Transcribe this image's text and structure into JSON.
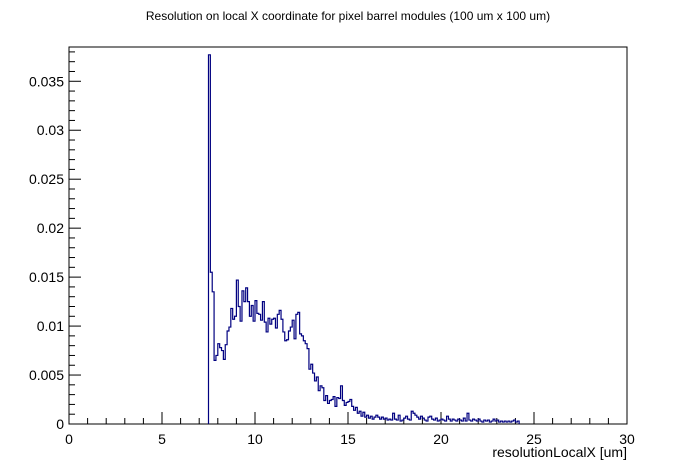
{
  "chart_data": {
    "type": "histogram",
    "title": "Resolution on local X coordinate for pixel barrel modules (100 um x 100 um)",
    "xlabel": "resolutionLocalX [um]",
    "ylabel": "",
    "xlim": [
      0,
      30
    ],
    "ylim": [
      0,
      0.0385
    ],
    "x_ticks": [
      0,
      5,
      10,
      15,
      20,
      25,
      30
    ],
    "x_tick_labels": [
      "0",
      "5",
      "10",
      "15",
      "20",
      "25",
      "30"
    ],
    "y_ticks": [
      0,
      0.005,
      0.01,
      0.015,
      0.02,
      0.025,
      0.03,
      0.035
    ],
    "y_tick_labels": [
      "0",
      "0.005",
      "0.01",
      "0.015",
      "0.02",
      "0.025",
      "0.03",
      "0.035"
    ],
    "grid": false,
    "line_color": "#000080",
    "bin_width": 0.1,
    "x": [
      7.5,
      7.6,
      7.7,
      7.8,
      7.9,
      8.0,
      8.1,
      8.2,
      8.3,
      8.4,
      8.5,
      8.6,
      8.7,
      8.8,
      8.9,
      9.0,
      9.1,
      9.2,
      9.3,
      9.4,
      9.5,
      9.6,
      9.7,
      9.8,
      9.9,
      10.0,
      10.1,
      10.2,
      10.3,
      10.4,
      10.5,
      10.6,
      10.7,
      10.8,
      10.9,
      11.0,
      11.1,
      11.2,
      11.3,
      11.4,
      11.5,
      11.6,
      11.7,
      11.8,
      11.9,
      12.0,
      12.1,
      12.2,
      12.3,
      12.4,
      12.5,
      12.6,
      12.7,
      12.8,
      12.9,
      13.0,
      13.1,
      13.2,
      13.3,
      13.4,
      13.5,
      13.6,
      13.7,
      13.8,
      13.9,
      14.0,
      14.1,
      14.2,
      14.3,
      14.4,
      14.5,
      14.6,
      14.7,
      14.8,
      14.9,
      15.0,
      15.1,
      15.2,
      15.3,
      15.4,
      15.5,
      15.6,
      15.7,
      15.8,
      15.9,
      16.0,
      16.1,
      16.2,
      16.3,
      16.4,
      16.5,
      16.6,
      16.7,
      16.8,
      16.9,
      17.0,
      17.1,
      17.2,
      17.3,
      17.4,
      17.5,
      17.6,
      17.7,
      17.8,
      17.9,
      18.0,
      18.1,
      18.2,
      18.3,
      18.4,
      18.5,
      18.6,
      18.7,
      18.8,
      18.9,
      19.0,
      19.1,
      19.2,
      19.3,
      19.4,
      19.5,
      19.6,
      19.7,
      19.8,
      19.9,
      20.0,
      20.1,
      20.2,
      20.3,
      20.4,
      20.5,
      20.6,
      20.7,
      20.8,
      20.9,
      21.0,
      21.1,
      21.2,
      21.3,
      21.4,
      21.5,
      21.6,
      21.7,
      21.8,
      21.9,
      22.0,
      22.1,
      22.2,
      22.3,
      22.4,
      22.5,
      22.6,
      22.7,
      22.8,
      22.9,
      23.0,
      23.1,
      23.2,
      23.3,
      23.4,
      23.5,
      23.6,
      23.7,
      23.8,
      23.9,
      24.0,
      24.1
    ],
    "values": [
      0.0377,
      0.0155,
      0.0135,
      0.0065,
      0.007,
      0.0082,
      0.0078,
      0.0075,
      0.0066,
      0.0081,
      0.0095,
      0.0099,
      0.0118,
      0.0107,
      0.011,
      0.0147,
      0.012,
      0.0105,
      0.0136,
      0.0125,
      0.0139,
      0.0125,
      0.011,
      0.0121,
      0.0105,
      0.0126,
      0.0113,
      0.0112,
      0.0106,
      0.0125,
      0.0104,
      0.0094,
      0.0108,
      0.0102,
      0.0107,
      0.0108,
      0.0098,
      0.0112,
      0.0116,
      0.0107,
      0.0094,
      0.0085,
      0.0086,
      0.0095,
      0.0099,
      0.0106,
      0.0087,
      0.0112,
      0.0114,
      0.0092,
      0.009,
      0.0085,
      0.0082,
      0.0077,
      0.0056,
      0.0061,
      0.0052,
      0.0044,
      0.0048,
      0.0034,
      0.0039,
      0.0037,
      0.0024,
      0.0029,
      0.0021,
      0.0024,
      0.0025,
      0.0028,
      0.0018,
      0.0027,
      0.0026,
      0.0039,
      0.0024,
      0.0019,
      0.0022,
      0.0023,
      0.0025,
      0.0018,
      0.0014,
      0.0017,
      0.0011,
      0.0013,
      0.0008,
      0.0012,
      0.0007,
      0.0009,
      0.0006,
      0.0008,
      0.0005,
      0.0007,
      0.0009,
      0.0007,
      0.0005,
      0.0007,
      0.0005,
      0.0006,
      0.0004,
      0.0005,
      0.0004,
      0.0011,
      0.0005,
      0.0004,
      0.0009,
      0.0003,
      0.0004,
      0.0006,
      0.0008,
      0.0005,
      0.0004,
      0.0013,
      0.0011,
      0.0009,
      0.0007,
      0.0005,
      0.0008,
      0.0006,
      0.0004,
      0.0003,
      0.0007,
      0.0008,
      0.0005,
      0.0004,
      0.0006,
      0.0003,
      0.0004,
      0.0005,
      0.0004,
      0.0003,
      0.0008,
      0.0005,
      0.0003,
      0.0005,
      0.0004,
      0.0003,
      0.0005,
      0.0004,
      0.0003,
      0.0006,
      0.0003,
      0.0011,
      0.0004,
      0.0003,
      0.0005,
      0.0004,
      0.0003,
      0.0005,
      0.0003,
      0.0002,
      0.0004,
      0.0003,
      0.0004,
      0.0002,
      0.0003,
      0.0005,
      0.0003,
      0.0004,
      0.0002,
      0.0003,
      0.0002,
      0.0003,
      0.0002,
      0.0003,
      0.0002,
      0.0003,
      0.0004,
      0.0002,
      0.0003
    ]
  }
}
